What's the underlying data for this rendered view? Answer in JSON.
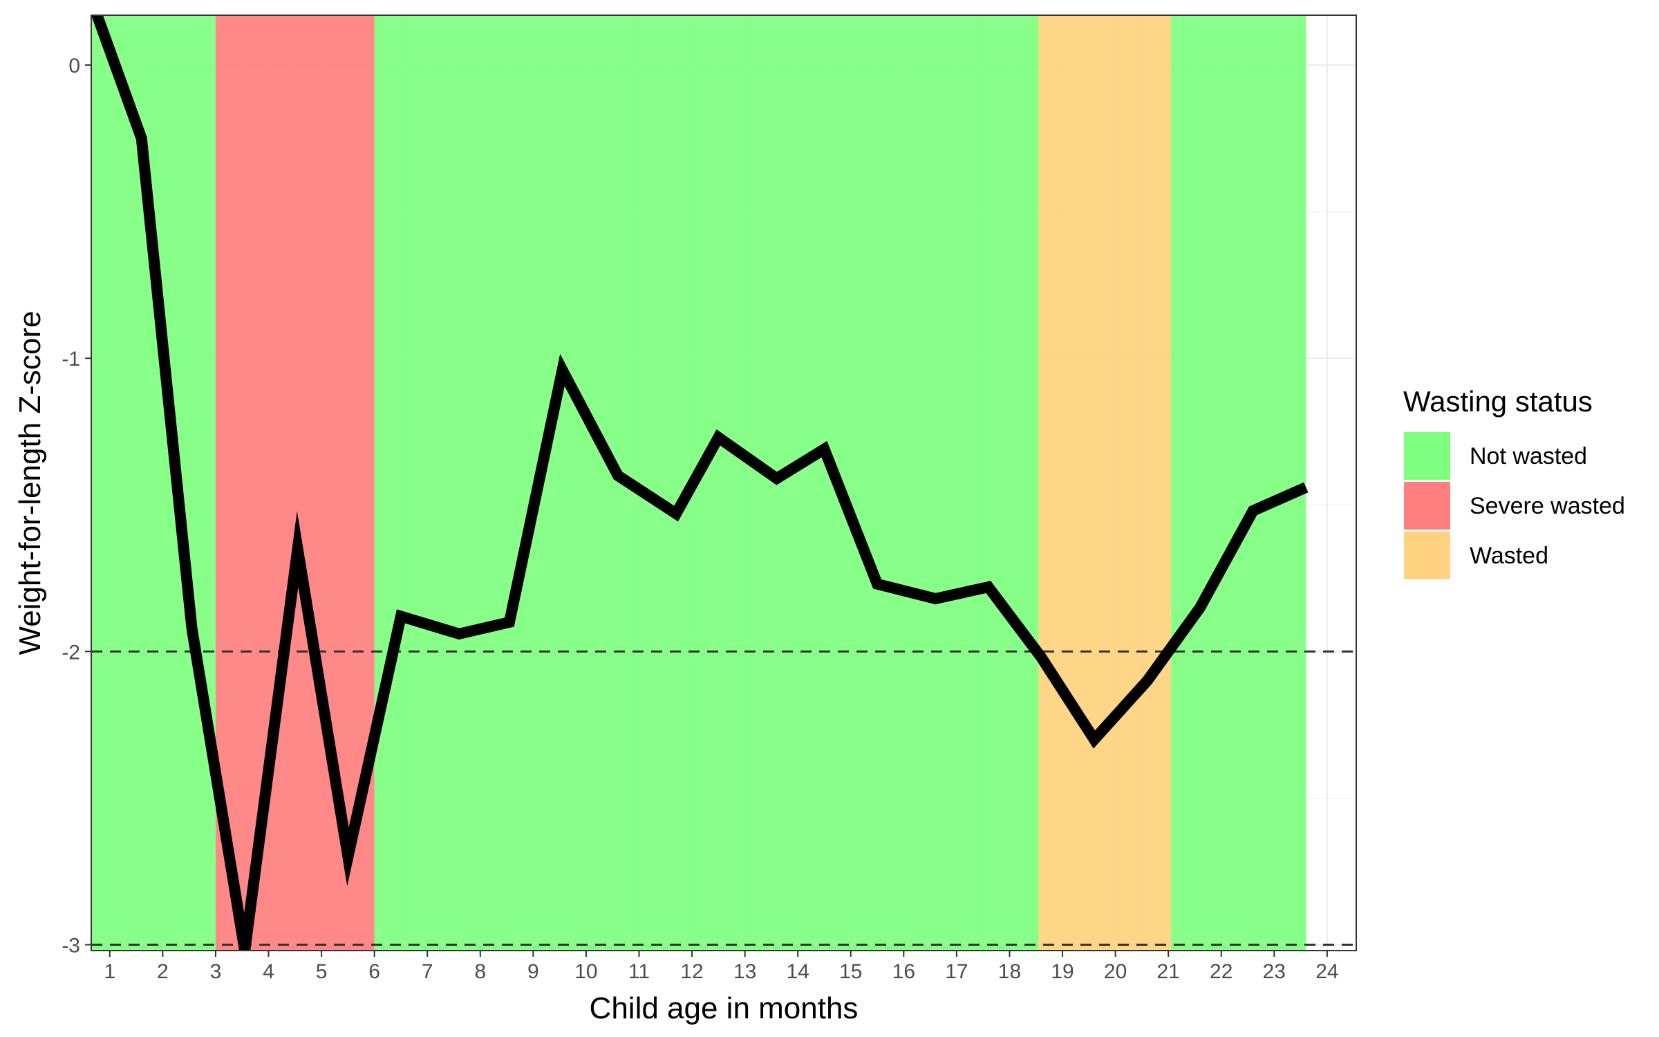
{
  "chart_data": {
    "type": "line",
    "title": "",
    "xlabel": "Child age in months",
    "ylabel": "Weight-for-length Z-score",
    "xlim": [
      0.65,
      24.55
    ],
    "ylim": [
      -3.02,
      0.17
    ],
    "x_ticks": [
      1,
      2,
      3,
      4,
      5,
      6,
      7,
      8,
      9,
      10,
      11,
      12,
      13,
      14,
      15,
      16,
      17,
      18,
      19,
      20,
      21,
      22,
      23,
      24
    ],
    "y_ticks": [
      0,
      -1,
      -2,
      -3
    ],
    "grid": true,
    "reference_lines": [
      -2,
      -3
    ],
    "series": [
      {
        "x": [
          0.6,
          1.6,
          2.55,
          3.55,
          4.55,
          5.5,
          6.5,
          7.6,
          8.55,
          9.55,
          10.6,
          11.7,
          12.5,
          13.6,
          14.5,
          15.5,
          16.6,
          17.6,
          18.6,
          19.6,
          20.6,
          21.6,
          22.6,
          23.6
        ],
        "y": [
          0.25,
          -0.25,
          -1.92,
          -3.02,
          -1.65,
          -2.7,
          -1.88,
          -1.94,
          -1.9,
          -1.04,
          -1.4,
          -1.53,
          -1.27,
          -1.41,
          -1.31,
          -1.77,
          -1.82,
          -1.78,
          -2.02,
          -2.3,
          -2.1,
          -1.85,
          -1.52,
          -1.44
        ]
      }
    ],
    "bands": [
      {
        "from": 0.65,
        "to": 3.0,
        "status": "Not wasted"
      },
      {
        "from": 3.0,
        "to": 6.0,
        "status": "Severe wasted"
      },
      {
        "from": 6.0,
        "to": 18.55,
        "status": "Not wasted"
      },
      {
        "from": 18.55,
        "to": 21.05,
        "status": "Wasted"
      },
      {
        "from": 21.05,
        "to": 23.6,
        "status": "Not wasted"
      }
    ],
    "legend": {
      "title": "Wasting status",
      "position": "right",
      "entries": [
        {
          "label": "Not wasted",
          "color": "#7fff7f"
        },
        {
          "label": "Severe wasted",
          "color": "#ff7f7f"
        },
        {
          "label": "Wasted",
          "color": "#ffd27f"
        }
      ]
    },
    "colors": {
      "line": "#000000",
      "reference_line": "#333333",
      "grid": "#ebebeb",
      "panel_border": "#333333"
    }
  }
}
